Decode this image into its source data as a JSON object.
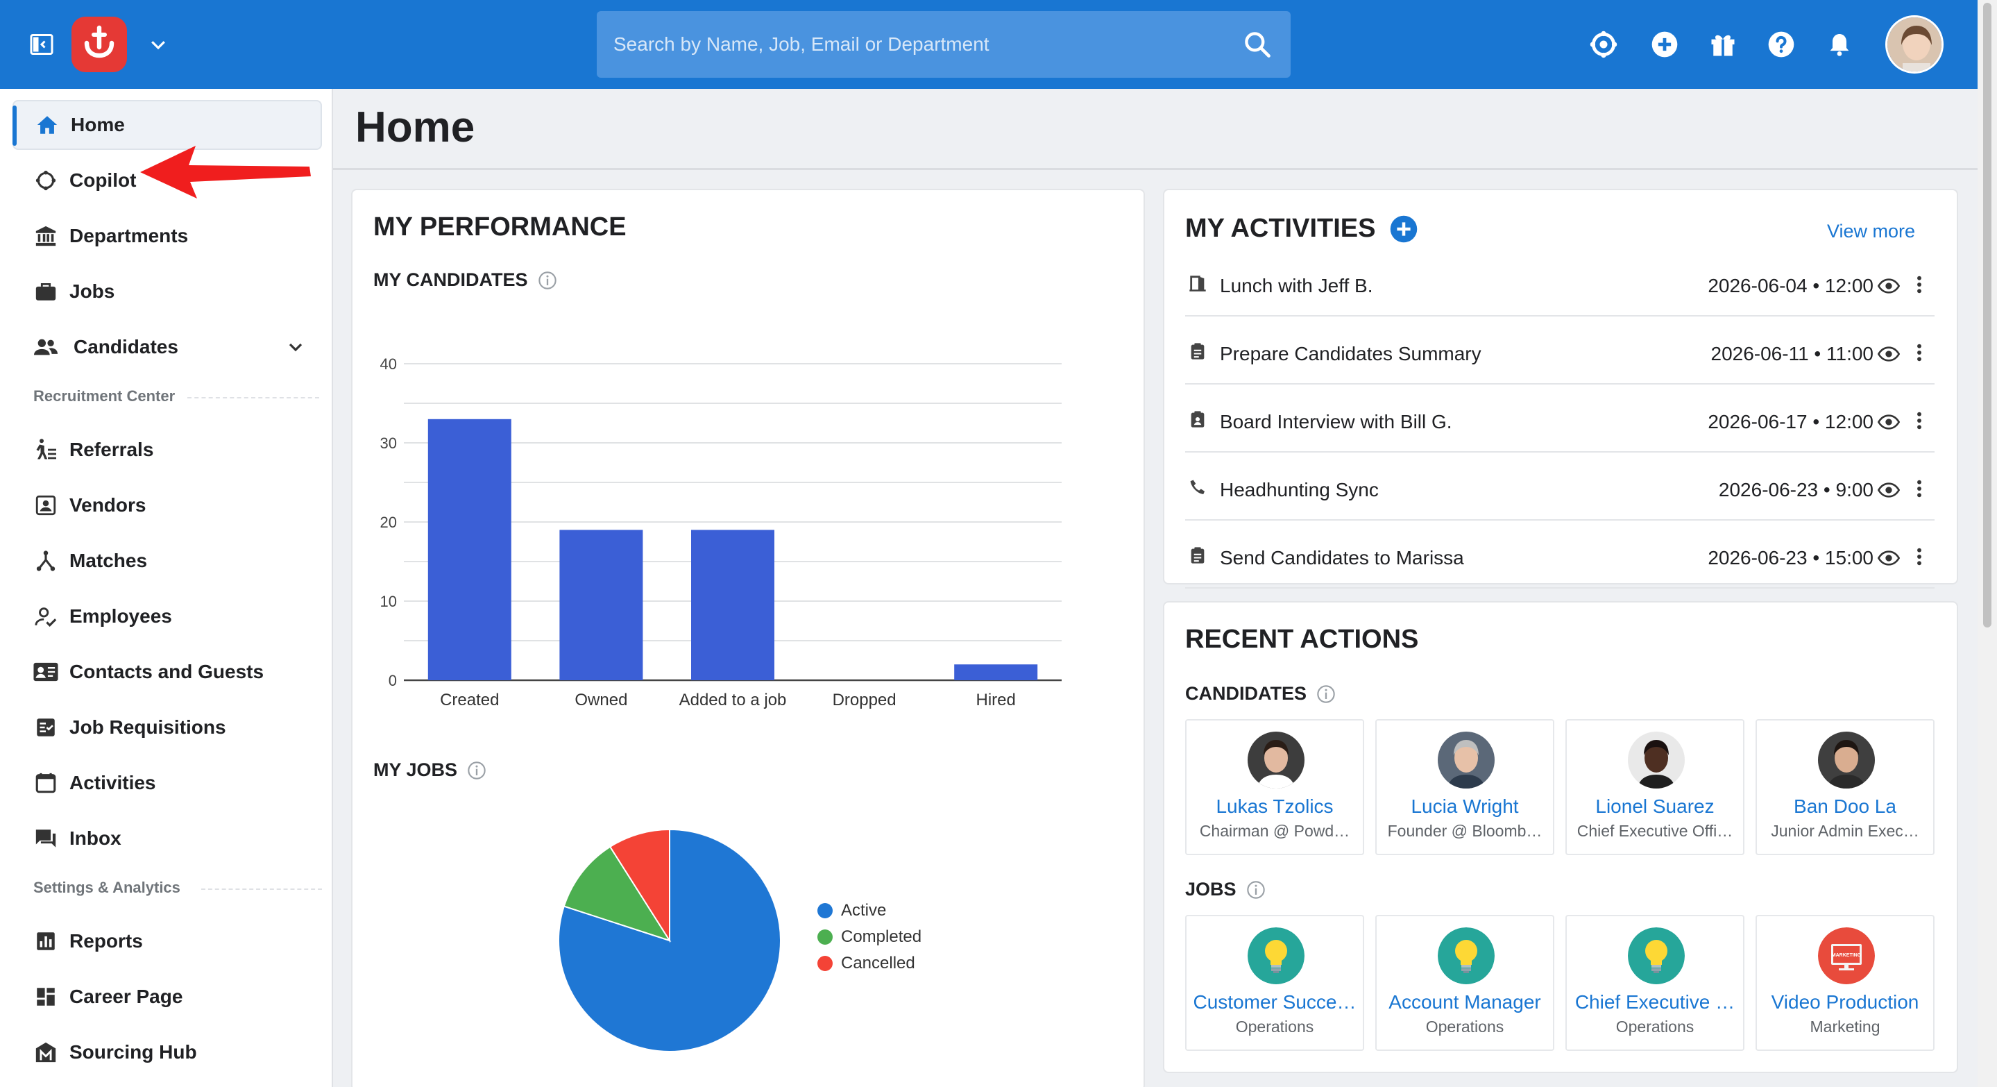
{
  "header": {
    "search_placeholder": "Search by Name, Job, Email or Department"
  },
  "sidebar": {
    "items": [
      {
        "label": "Home",
        "icon": "home-icon"
      },
      {
        "label": "Copilot",
        "icon": "copilot-icon"
      },
      {
        "label": "Departments",
        "icon": "bank-icon"
      },
      {
        "label": "Jobs",
        "icon": "briefcase-icon"
      },
      {
        "label": "Candidates",
        "icon": "people-icon"
      }
    ],
    "section_recruitment": "Recruitment Center",
    "recruitment_items": [
      {
        "label": "Referrals",
        "icon": "referral-icon"
      },
      {
        "label": "Vendors",
        "icon": "vendor-icon"
      },
      {
        "label": "Matches",
        "icon": "matches-icon"
      },
      {
        "label": "Employees",
        "icon": "employee-icon"
      },
      {
        "label": "Contacts and Guests",
        "icon": "contacts-icon"
      },
      {
        "label": "Job Requisitions",
        "icon": "requisition-icon"
      },
      {
        "label": "Activities",
        "icon": "calendar-icon"
      },
      {
        "label": "Inbox",
        "icon": "inbox-icon"
      }
    ],
    "section_settings": "Settings & Analytics",
    "settings_items": [
      {
        "label": "Reports",
        "icon": "reports-icon"
      },
      {
        "label": "Career Page",
        "icon": "career-page-icon"
      },
      {
        "label": "Sourcing Hub",
        "icon": "sourcing-hub-icon"
      }
    ]
  },
  "main": {
    "title": "Home"
  },
  "performance": {
    "title": "MY PERFORMANCE",
    "candidates_label": "MY CANDIDATES",
    "jobs_label": "MY JOBS"
  },
  "chart_data": [
    {
      "type": "bar",
      "categories": [
        "Created",
        "Owned",
        "Added to a job",
        "Dropped",
        "Hired"
      ],
      "values": [
        33,
        19,
        19,
        0,
        2
      ],
      "ylim": [
        0,
        40
      ],
      "yticks": [
        0,
        10,
        20,
        30,
        40
      ],
      "color": "#3b5fd6",
      "grid": true
    },
    {
      "type": "pie",
      "labels": [
        "Active",
        "Completed",
        "Cancelled"
      ],
      "values": [
        80,
        11,
        9
      ],
      "colors": [
        "#1f77d4",
        "#4caf50",
        "#f44336"
      ],
      "legend": "right"
    }
  ],
  "activities": {
    "title": "MY ACTIVITIES",
    "view_more": "View more",
    "items": [
      {
        "text": "Lunch with Jeff B.",
        "date": "2026-06-04 • 12:00",
        "icon": "door-icon"
      },
      {
        "text": "Prepare Candidates Summary",
        "date": "2026-06-11 • 11:00",
        "icon": "clipboard-icon"
      },
      {
        "text": "Board Interview with Bill G.",
        "date": "2026-06-17 • 12:00",
        "icon": "interview-icon"
      },
      {
        "text": "Headhunting Sync",
        "date": "2026-06-23 • 9:00",
        "icon": "phone-icon"
      },
      {
        "text": "Send Candidates to Marissa",
        "date": "2026-06-23 • 15:00",
        "icon": "clipboard-icon"
      }
    ]
  },
  "recent": {
    "title": "RECENT ACTIONS",
    "candidates_label": "CANDIDATES",
    "jobs_label": "JOBS",
    "candidates": [
      {
        "name": "Lukas Tzolics",
        "sub": "Chairman @ Powd…"
      },
      {
        "name": "Lucia Wright",
        "sub": "Founder @ Bloomb…"
      },
      {
        "name": "Lionel Suarez",
        "sub": "Chief Executive Offi…"
      },
      {
        "name": "Ban Doo La",
        "sub": "Junior Admin Exec…"
      }
    ],
    "jobs": [
      {
        "name": "Customer Succe…",
        "sub": "Operations",
        "icon": "lightbulb-icon"
      },
      {
        "name": "Account Manager",
        "sub": "Operations",
        "icon": "lightbulb-icon"
      },
      {
        "name": "Chief Executive …",
        "sub": "Operations",
        "icon": "lightbulb-icon"
      },
      {
        "name": "Video Production",
        "sub": "Marketing",
        "icon": "marketing-icon",
        "badge": "MARKETING"
      }
    ]
  },
  "colors": {
    "brand": "#1976d2",
    "logo": "#e53935",
    "annotation_arrow": "#f01e1e"
  }
}
